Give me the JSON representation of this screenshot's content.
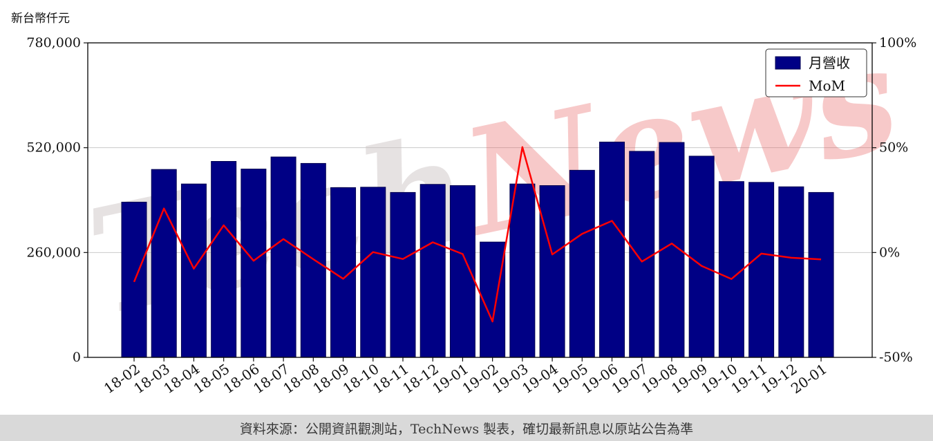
{
  "header": {
    "y_axis_title": "新台幣仟元"
  },
  "legend": {
    "bar_label": "月營收",
    "line_label": "MoM"
  },
  "watermark": {
    "part1": "Tech",
    "part2": "News"
  },
  "footer": {
    "source_text": "資料來源：公開資訊觀測站，TechNews 製表，確切最新訊息以原站公告為準"
  },
  "colors": {
    "bar": "#000085",
    "bar_edge": "#000050",
    "line": "#ff0000",
    "grid": "#c9c9c9",
    "frame": "#000000",
    "footer_bg": "#d9d9d9"
  },
  "chart_data": {
    "type": "bar+line",
    "title": "",
    "categories": [
      "18-02",
      "18-03",
      "18-04",
      "18-05",
      "18-06",
      "18-07",
      "18-08",
      "18-09",
      "18-10",
      "18-11",
      "18-12",
      "19-01",
      "19-02",
      "19-03",
      "19-04",
      "19-05",
      "19-06",
      "19-07",
      "19-08",
      "19-09",
      "19-10",
      "19-11",
      "19-12",
      "20-01"
    ],
    "series": [
      {
        "name": "月營收",
        "type": "bar",
        "axis": "left",
        "values": [
          385000,
          466000,
          430000,
          486000,
          467000,
          497000,
          481000,
          421000,
          422000,
          409000,
          429000,
          426000,
          286000,
          430000,
          426000,
          464000,
          534000,
          511000,
          533000,
          499000,
          436000,
          434000,
          423000,
          409000
        ]
      },
      {
        "name": "MoM",
        "type": "line",
        "axis": "right",
        "values": [
          -14.0,
          21.0,
          -7.7,
          13.0,
          -3.9,
          6.4,
          -3.2,
          -12.5,
          0.2,
          -3.1,
          4.9,
          -0.7,
          -32.9,
          50.3,
          -0.9,
          8.9,
          15.1,
          -4.3,
          4.3,
          -6.4,
          -12.6,
          -0.5,
          -2.5,
          -3.3
        ]
      }
    ],
    "left_axis": {
      "title": "新台幣仟元",
      "range": [
        0,
        780000
      ],
      "ticks": [
        0,
        260000,
        520000,
        780000
      ],
      "tick_labels": [
        "0",
        "260,000",
        "520,000",
        "780,000"
      ]
    },
    "right_axis": {
      "range": [
        -50,
        100
      ],
      "ticks": [
        -50,
        0,
        50,
        100
      ],
      "tick_labels": [
        "-50%",
        "0%",
        "50%",
        "100%"
      ]
    },
    "grid": true,
    "legend_position": "top-right"
  }
}
